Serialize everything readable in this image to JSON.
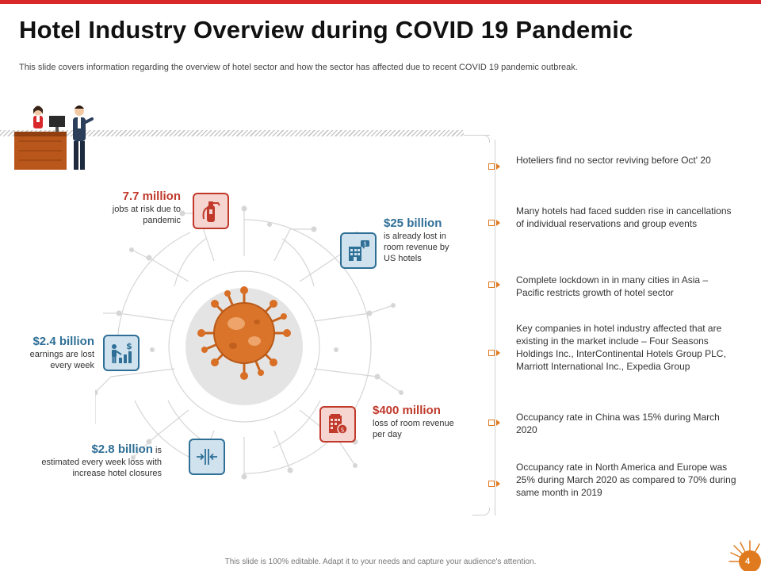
{
  "header": {
    "title": "Hotel Industry Overview during COVID 19 Pandemic",
    "subtitle": "This slide covers information regarding the overview of hotel sector and how the sector has affected due to recent COVID  19 pandemic outbreak."
  },
  "stats": [
    {
      "value": "7.7 million",
      "text": "jobs at risk due to pandemic",
      "icon": "fire-extinguisher-icon"
    },
    {
      "value": "$25 billion",
      "text": "is already lost in room revenue by US hotels",
      "icon": "hotel-building-icon"
    },
    {
      "value": "$2.4 billion",
      "text": "earnings are lost every week",
      "icon": "money-loss-icon"
    },
    {
      "value": "$400 million",
      "text": "loss of room revenue per day",
      "icon": "hotel-revenue-icon"
    },
    {
      "value": "$2.8 billion",
      "text_inline": "is",
      "text": "estimated every week loss with increase hotel closures",
      "icon": "compress-arrows-icon"
    }
  ],
  "points": [
    "Hoteliers find no sector reviving  before Oct' 20",
    "Many hotels had faced sudden rise in cancellations of individual reservations  and group events",
    "Complete lockdown in in many cities in Asia – Pacific restricts growth of hotel sector",
    "Key companies in hotel industry affected that are existing in the market include –  Four Seasons Holdings Inc., InterContinental Hotels Group PLC, Marriott International Inc., Expedia Group",
    "Occupancy rate in China was 15% during March 2020",
    "Occupancy rate in North America and Europe was 25% during March 2020 as compared to 70% during same month in 2019"
  ],
  "footer": {
    "text": "This slide is 100% editable.  Adapt it to your needs and capture your audience's attention.",
    "page_number": "4"
  },
  "colors": {
    "accent_red": "#c0392b",
    "accent_blue": "#2f6f96",
    "bullet_orange": "#e07a1f",
    "top_bar": "#d9282a"
  }
}
